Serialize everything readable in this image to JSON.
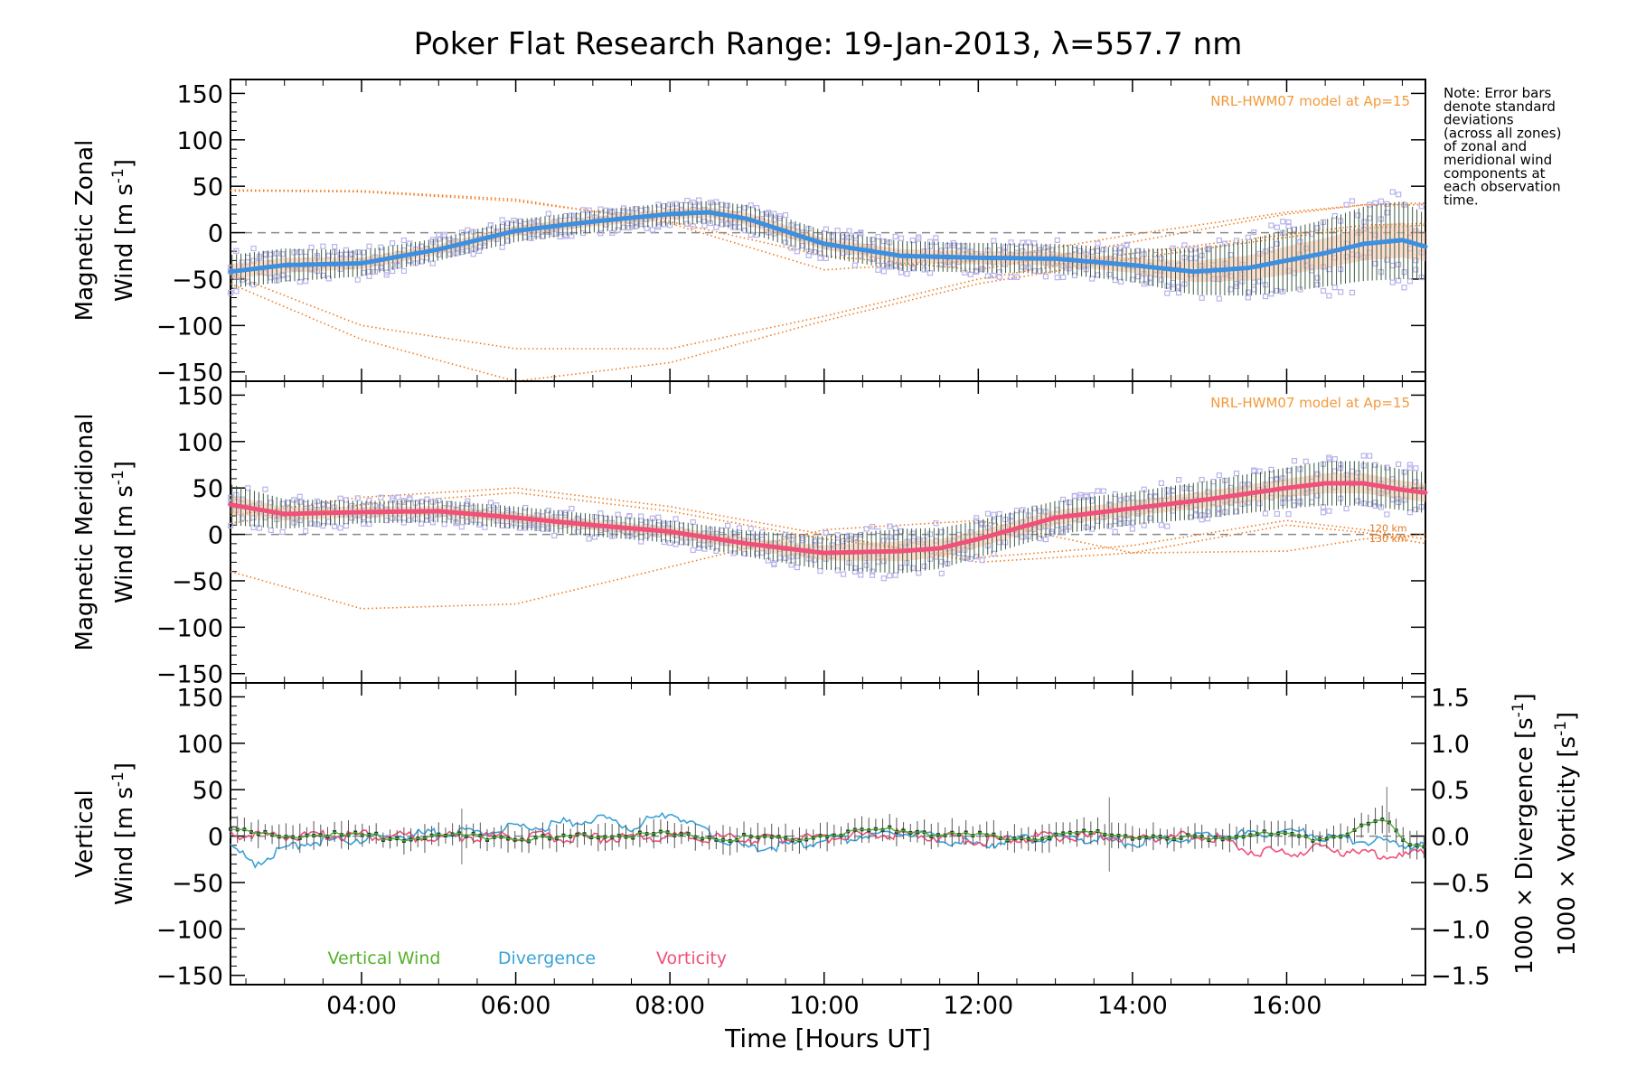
{
  "chart_data": {
    "type": "line",
    "title": "Poker Flat Research Range: 19-Jan-2013, λ=557.7 nm",
    "xlabel": "Time [Hours UT]",
    "x_ticks": [
      "04:00",
      "06:00",
      "08:00",
      "10:00",
      "12:00",
      "14:00",
      "16:00"
    ],
    "x_tick_hours": [
      4,
      6,
      8,
      10,
      12,
      14,
      16
    ],
    "xlim_hours": [
      2.3,
      17.8
    ],
    "note": [
      "Note: Error bars",
      "denote standard",
      "deviations",
      "(across all zones)",
      "of zonal and",
      "meridional wind",
      "components at",
      "each observation",
      "time."
    ],
    "panels": [
      {
        "id": "zonal",
        "ylabel_line1": "Magnetic Zonal",
        "ylabel_line2": "Wind [m s",
        "ylabel_sup": "-1",
        "ylabel_close": "]",
        "ylim": [
          -160,
          165
        ],
        "y_ticks": [
          150,
          100,
          50,
          0,
          -50,
          -100,
          -150
        ],
        "model_label": "NRL-HWM07 model at Ap=15",
        "series": [
          {
            "name": "Magnetic Zonal Wind",
            "color": "#3d8fe0",
            "x": [
              2.3,
              3.0,
              4.0,
              5.0,
              6.0,
              7.0,
              8.0,
              8.5,
              9.0,
              10.0,
              11.0,
              12.0,
              13.0,
              14.0,
              14.8,
              15.5,
              16.0,
              16.5,
              17.0,
              17.5,
              17.8
            ],
            "y": [
              -42,
              -35,
              -33,
              -18,
              2,
              12,
              20,
              22,
              15,
              -12,
              -25,
              -27,
              -28,
              -35,
              -42,
              -38,
              -30,
              -22,
              -12,
              -8,
              -15
            ],
            "err": [
              18,
              18,
              14,
              12,
              12,
              12,
              12,
              12,
              15,
              14,
              16,
              16,
              16,
              18,
              25,
              30,
              34,
              36,
              40,
              42,
              35
            ]
          }
        ],
        "model_curves": [
          {
            "name": "HWM07 a",
            "x": [
              2.3,
              4,
              6,
              8,
              10,
              12,
              14,
              16,
              17,
              17.8
            ],
            "y": [
              46,
              45,
              36,
              10,
              -40,
              -30,
              -2,
              22,
              30,
              30
            ]
          },
          {
            "name": "HWM07 b",
            "x": [
              2.3,
              4,
              6,
              8,
              10,
              12,
              14,
              16,
              17,
              17.8
            ],
            "y": [
              -55,
              -115,
              -160,
              -140,
              -95,
              -55,
              -28,
              -5,
              5,
              8
            ]
          },
          {
            "name": "HWM07 c",
            "x": [
              2.3,
              4,
              6,
              8,
              10,
              12,
              14,
              16,
              17,
              17.8
            ],
            "y": [
              -45,
              -100,
              -125,
              -125,
              -90,
              -50,
              -22,
              -2,
              8,
              10
            ]
          },
          {
            "name": "HWM07 d",
            "x": [
              2.3,
              4,
              6,
              8,
              10,
              12,
              14,
              16,
              17,
              17.8
            ],
            "y": [
              45,
              44,
              34,
              12,
              -25,
              -40,
              -10,
              20,
              30,
              32
            ]
          }
        ]
      },
      {
        "id": "meridional",
        "ylabel_line1": "Magnetic Meridional",
        "ylabel_line2": "Wind [m s",
        "ylabel_sup": "-1",
        "ylabel_close": "]",
        "ylim": [
          -160,
          165
        ],
        "y_ticks": [
          150,
          100,
          50,
          0,
          -50,
          -100,
          -150
        ],
        "model_label": "NRL-HWM07 model at Ap=15",
        "km_labels": [
          "120 km",
          "130 km"
        ],
        "series": [
          {
            "name": "Magnetic Meridional Wind",
            "color": "#f0507a",
            "x": [
              2.3,
              3.0,
              4.0,
              5.0,
              6.0,
              7.0,
              8.0,
              9.0,
              10.0,
              11.0,
              11.5,
              12.0,
              13.0,
              14.0,
              15.0,
              16.0,
              16.5,
              17.0,
              17.5,
              17.8
            ],
            "y": [
              32,
              22,
              24,
              25,
              18,
              10,
              3,
              -10,
              -20,
              -18,
              -15,
              -5,
              18,
              28,
              38,
              50,
              55,
              55,
              48,
              45
            ],
            "err": [
              22,
              16,
              12,
              12,
              12,
              12,
              12,
              14,
              18,
              24,
              22,
              20,
              18,
              18,
              20,
              22,
              24,
              24,
              22,
              22
            ]
          }
        ],
        "model_curves": [
          {
            "name": "HWM07 a",
            "x": [
              2.3,
              4,
              6,
              8,
              10,
              12,
              14,
              16,
              17,
              17.8
            ],
            "y": [
              12,
              32,
              45,
              25,
              -5,
              -25,
              -12,
              15,
              5,
              -5
            ]
          },
          {
            "name": "HWM07 b",
            "x": [
              2.3,
              4,
              6,
              8,
              10,
              12,
              14,
              16,
              17,
              17.8
            ],
            "y": [
              -40,
              -80,
              -75,
              -35,
              5,
              15,
              -20,
              -18,
              -5,
              0
            ]
          },
          {
            "name": "HWM07 c",
            "x": [
              2.3,
              4,
              6,
              8,
              10,
              12,
              14,
              16,
              17,
              17.8
            ],
            "y": [
              20,
              40,
              50,
              30,
              0,
              -30,
              -20,
              10,
              2,
              -10
            ]
          }
        ]
      },
      {
        "id": "vertical",
        "ylabel_line1": "Vertical",
        "ylabel_line2": "Wind [m s",
        "ylabel_sup": "-1",
        "ylabel_close": "]",
        "ylim": [
          -160,
          165
        ],
        "y_ticks": [
          150,
          100,
          50,
          0,
          -50,
          -100,
          -150
        ],
        "right_ylim": [
          -1.6,
          1.65
        ],
        "right_ticks": [
          1.5,
          1.0,
          0.5,
          0.0,
          -0.5,
          -1.0,
          -1.5
        ],
        "right_tick_labels": [
          "1.5",
          "1.0",
          "0.5",
          "0.0",
          "−0.5",
          "−1.0",
          "−1.5"
        ],
        "right_label_div": "1000 × Divergence [s",
        "right_label_vort": "1000 × Vorticity [s",
        "right_label_sup": "-1",
        "right_label_close": "]",
        "series": [
          {
            "name": "Vertical Wind",
            "color": "#55b02a",
            "x": [
              2.3,
              2.8,
              3.5,
              4.5,
              5.5,
              6.5,
              7.5,
              8.5,
              9.5,
              10.5,
              11.0,
              11.5,
              12.5,
              13.5,
              14.0,
              14.5,
              15.5,
              16.5,
              17.3,
              17.5,
              17.8
            ],
            "y": [
              5,
              0,
              2,
              -2,
              0,
              -3,
              2,
              -1,
              -3,
              5,
              8,
              2,
              -2,
              3,
              0,
              -4,
              2,
              -2,
              18,
              -5,
              -10
            ]
          },
          {
            "name": "Divergence",
            "color": "#3aa2d8",
            "x": [
              2.3,
              2.6,
              3.0,
              3.5,
              4.5,
              5.5,
              6.3,
              7.0,
              7.5,
              8.0,
              8.5,
              9.0,
              10.0,
              11.0,
              12.0,
              13.0,
              14.0,
              15.0,
              16.0,
              17.0,
              17.8
            ],
            "y": [
              -0.1,
              -0.3,
              -0.12,
              -0.05,
              0.0,
              0.05,
              0.1,
              0.2,
              0.1,
              0.25,
              0.05,
              -0.15,
              -0.05,
              0.05,
              -0.1,
              0.0,
              -0.08,
              0.0,
              0.05,
              -0.05,
              -0.1
            ]
          },
          {
            "name": "Vorticity",
            "color": "#f0507a",
            "x": [
              2.3,
              3.0,
              4.0,
              5.0,
              6.0,
              7.0,
              8.0,
              9.0,
              10.0,
              11.0,
              12.0,
              13.0,
              14.0,
              15.0,
              15.5,
              16.0,
              16.5,
              17.0,
              17.5,
              17.8
            ],
            "y": [
              0.02,
              0.0,
              0.01,
              -0.01,
              0.0,
              -0.02,
              0.0,
              -0.03,
              -0.02,
              0.03,
              -0.05,
              0.0,
              -0.02,
              0.0,
              -0.15,
              -0.18,
              -0.12,
              -0.2,
              -0.22,
              -0.18
            ]
          }
        ],
        "legend": [
          "Vertical Wind",
          "Divergence",
          "Vorticity"
        ]
      }
    ]
  }
}
